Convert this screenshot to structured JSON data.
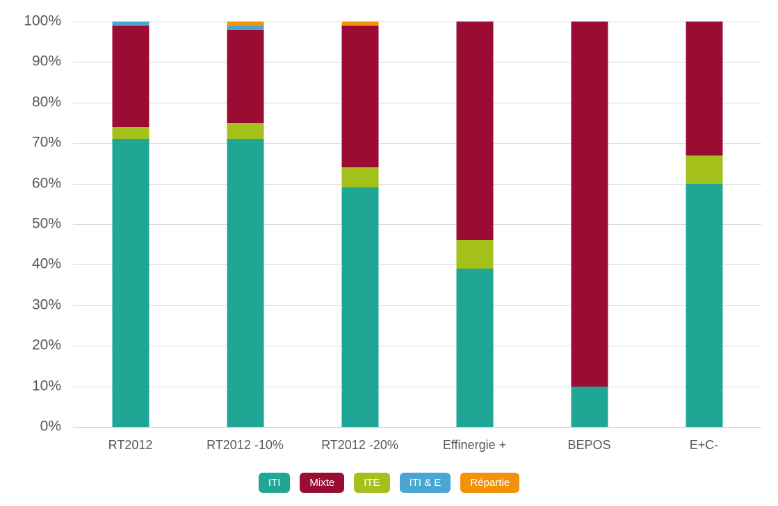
{
  "chart_data": {
    "type": "bar",
    "stacked": true,
    "stacked_percent": true,
    "title": "",
    "xlabel": "",
    "ylabel": "",
    "grid": true,
    "categories": [
      "RT2012",
      "RT2012 -10%",
      "RT2012 -20%",
      "Effinergie +",
      "BEPOS",
      "E+C-"
    ],
    "series": [
      {
        "name": "ITI",
        "color": "#1FA695",
        "values": [
          71,
          71,
          59,
          39,
          10,
          60
        ]
      },
      {
        "name": "Mixte",
        "color": "#9B0C35",
        "values": [
          25,
          23,
          35,
          54,
          90,
          33
        ]
      },
      {
        "name": "ITE",
        "color": "#A4C11B",
        "values": [
          3,
          4,
          5,
          7,
          0,
          7
        ]
      },
      {
        "name": "ITI & E",
        "color": "#4AA5D2",
        "values": [
          1,
          1,
          0,
          0,
          0,
          0
        ]
      },
      {
        "name": "Répartie",
        "color": "#F39208",
        "values": [
          0,
          1,
          1,
          0,
          0,
          0
        ]
      }
    ],
    "stack_order": [
      "ITI",
      "ITE",
      "Mixte",
      "ITI & E",
      "Répartie"
    ],
    "y_axis": {
      "min": 0,
      "max": 100,
      "step": 10,
      "tick_suffix": "%",
      "tick_labels": [
        "0%",
        "10%",
        "20%",
        "30%",
        "40%",
        "50%",
        "60%",
        "70%",
        "80%",
        "90%",
        "100%"
      ]
    },
    "legend": {
      "position": "bottom",
      "labels": [
        "ITI",
        "Mixte",
        "ITE",
        "ITI & E",
        "Répartie"
      ]
    },
    "style": {
      "background": "#FFFFFF",
      "grid_color": "#D9D9D9",
      "axis_line_color": "#C3C3C3",
      "text_color": "#595959",
      "legend_text_color": "#FFFFFF"
    }
  }
}
